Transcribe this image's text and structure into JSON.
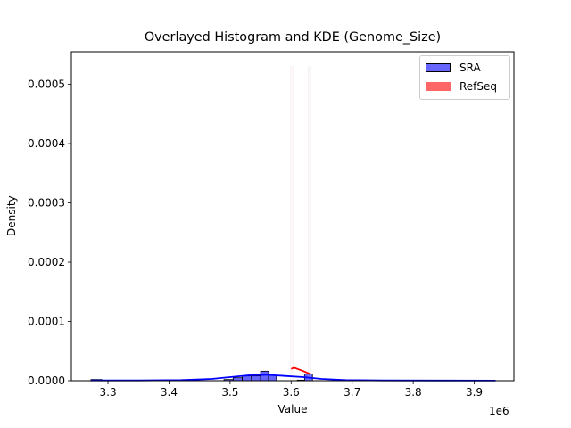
{
  "chart_data": {
    "type": "bar",
    "title": "Overlayed Histogram and KDE (Genome_Size)",
    "xlabel": "Value",
    "ylabel": "Density",
    "x_offset_label": "1e6",
    "xlim": [
      3240000,
      3965000
    ],
    "ylim": [
      0,
      0.000555
    ],
    "x_ticks": [
      3300000,
      3400000,
      3500000,
      3600000,
      3700000,
      3800000,
      3900000
    ],
    "x_tick_labels": [
      "3.3",
      "3.4",
      "3.5",
      "3.6",
      "3.7",
      "3.8",
      "3.9"
    ],
    "y_ticks": [
      0,
      0.0001,
      0.0002,
      0.0003,
      0.0004,
      0.0005
    ],
    "y_tick_labels": [
      "0.0000",
      "0.0001",
      "0.0002",
      "0.0003",
      "0.0004",
      "0.0005"
    ],
    "grid": false,
    "legend_position": "upper right",
    "legend": [
      "SRA",
      "RefSeq"
    ],
    "series": [
      {
        "name": "SRA",
        "kind": "histogram",
        "color": "#0000ff",
        "fill_alpha": 0.6,
        "bins": [
          {
            "x0": 3272000,
            "x1": 3290000,
            "density": 2e-06
          },
          {
            "x0": 3490000,
            "x1": 3505000,
            "density": 2e-06
          },
          {
            "x0": 3505000,
            "x1": 3520000,
            "density": 5e-06
          },
          {
            "x0": 3520000,
            "x1": 3535000,
            "density": 8e-06
          },
          {
            "x0": 3535000,
            "x1": 3550000,
            "density": 8e-06
          },
          {
            "x0": 3550000,
            "x1": 3563000,
            "density": 1.6e-05
          },
          {
            "x0": 3563000,
            "x1": 3576000,
            "density": 9e-06
          },
          {
            "x0": 3610000,
            "x1": 3622000,
            "density": 1e-06
          },
          {
            "x0": 3622000,
            "x1": 3635000,
            "density": 1.1e-05
          }
        ]
      },
      {
        "name": "SRA KDE",
        "kind": "kde",
        "color": "#0000ff",
        "x": [
          3272000,
          3350000,
          3420000,
          3470000,
          3500000,
          3530000,
          3560000,
          3590000,
          3620000,
          3650000,
          3690000,
          3750000,
          3850000,
          3935000
        ],
        "y": [
          5e-07,
          5e-07,
          1e-06,
          3e-06,
          6e-06,
          9e-06,
          1e-05,
          8e-06,
          6e-06,
          3e-06,
          1e-06,
          5e-07,
          3e-07,
          2e-07
        ]
      },
      {
        "name": "RefSeq",
        "kind": "histogram",
        "color": "#ff0000",
        "fill_alpha": 0.6,
        "bins": [
          {
            "x0": 3599000,
            "x1": 3603000,
            "density": 0.00053
          },
          {
            "x0": 3628000,
            "x1": 3632000,
            "density": 0.00053
          }
        ]
      },
      {
        "name": "RefSeq KDE",
        "kind": "kde",
        "color": "#ff0000",
        "x": [
          3600000,
          3605000,
          3610000,
          3618000,
          3625000,
          3632000
        ],
        "y": [
          2e-05,
          2.2e-05,
          2e-05,
          1.7e-05,
          1.4e-05,
          1.1e-05
        ]
      }
    ]
  }
}
